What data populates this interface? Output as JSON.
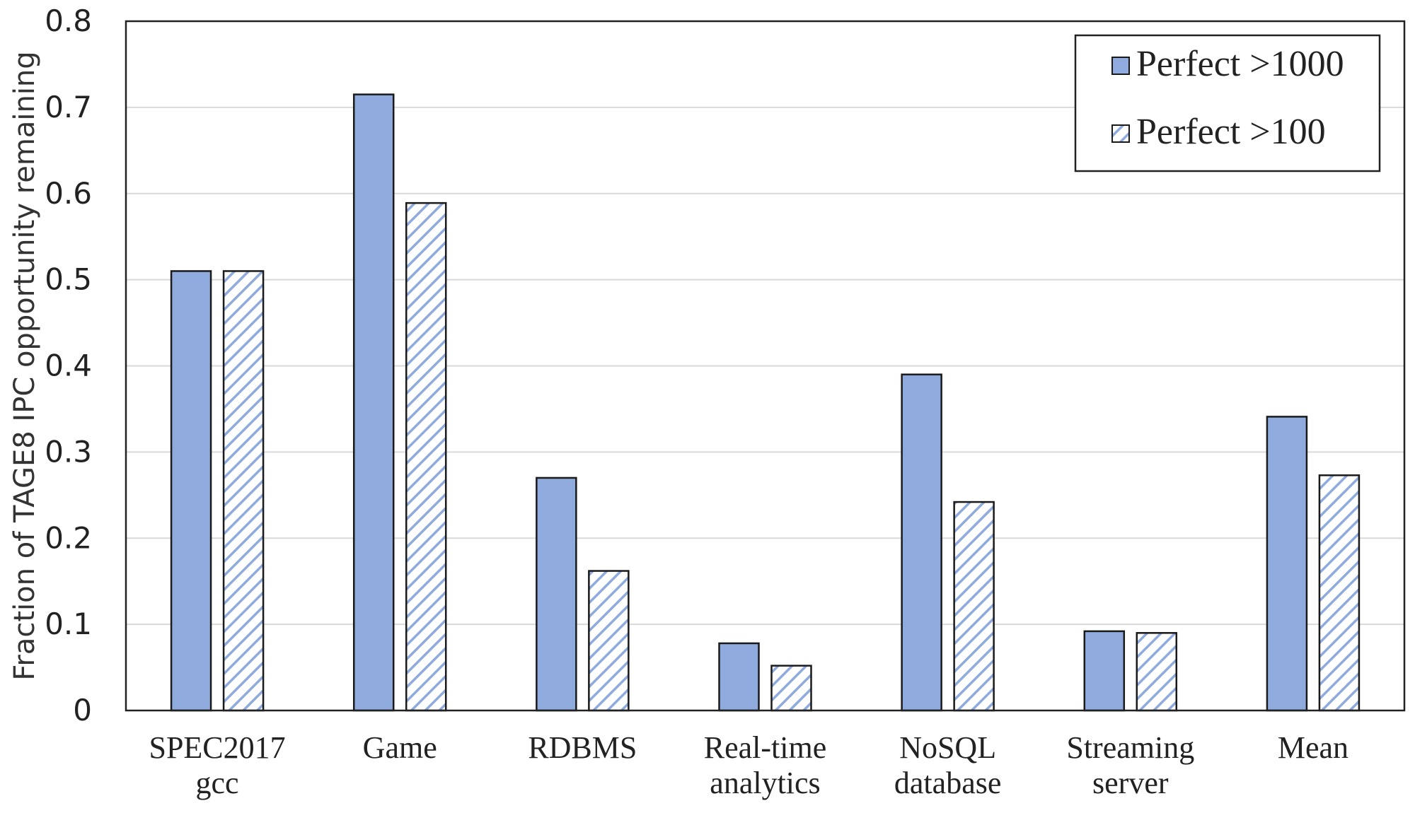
{
  "chart_data": {
    "type": "bar",
    "title": "",
    "xlabel": "",
    "ylabel": "Fraction of TAGE8 IPC opportunity remaining",
    "categories": [
      [
        "SPEC2017",
        "gcc"
      ],
      [
        "Game"
      ],
      [
        "RDBMS"
      ],
      [
        "Real-time",
        "analytics"
      ],
      [
        "NoSQL",
        "database"
      ],
      [
        "Streaming",
        "server"
      ],
      [
        "Mean"
      ]
    ],
    "series": [
      {
        "name": "Perfect >1000",
        "pattern": "solid",
        "values": [
          0.51,
          0.715,
          0.27,
          0.078,
          0.39,
          0.092,
          0.341
        ]
      },
      {
        "name": "Perfect >100",
        "pattern": "hatched",
        "values": [
          0.51,
          0.589,
          0.162,
          0.052,
          0.242,
          0.09,
          0.273
        ]
      }
    ],
    "ylim": [
      0,
      0.8
    ],
    "yticks": [
      "0",
      "0.1",
      "0.2",
      "0.3",
      "0.4",
      "0.5",
      "0.6",
      "0.7",
      "0.8"
    ],
    "grid": true,
    "legend_position": "top-right",
    "colors": {
      "bar_fill": "#8faadc",
      "bar_stroke": "#1a1a1a",
      "hatch_line": "#8faadc",
      "grid": "#d9d9d9"
    }
  }
}
